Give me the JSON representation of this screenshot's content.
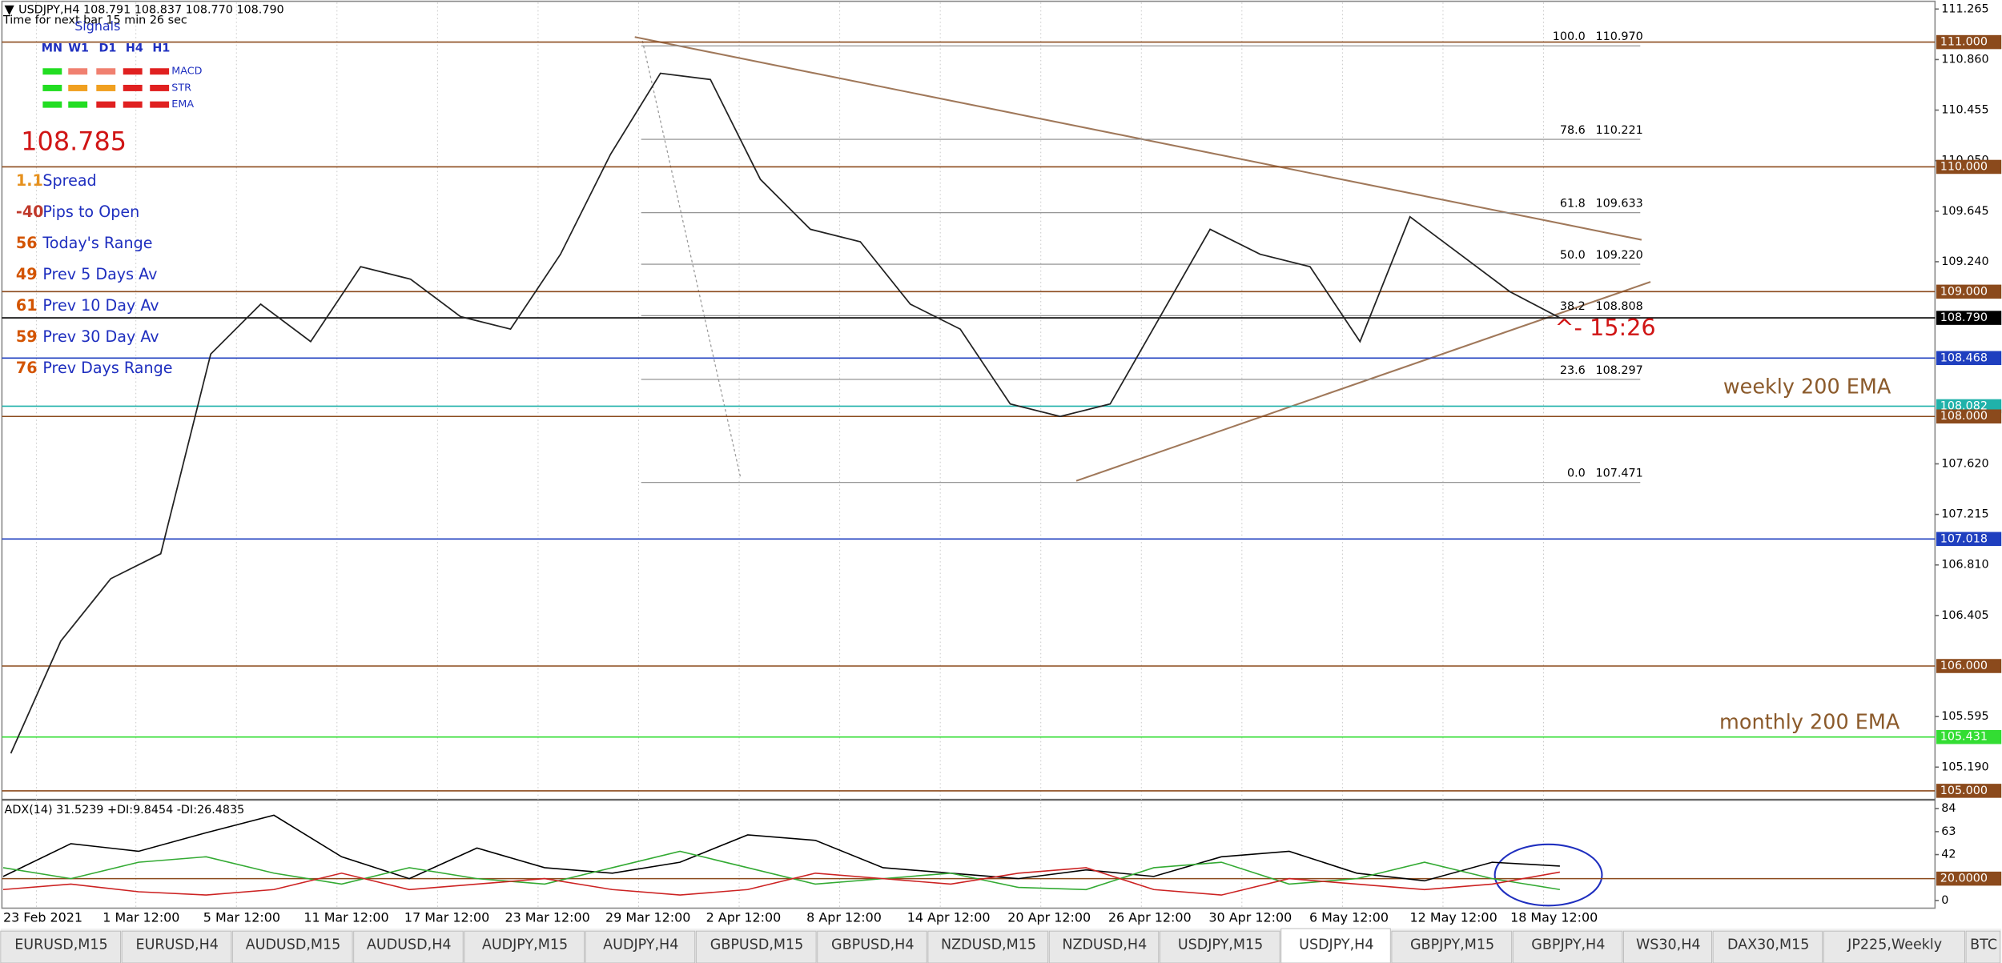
{
  "header": {
    "symbol_line": "USDJPY,H4  108.791 108.837 108.770 108.790",
    "timer": "Time for next bar 15 min 26 sec"
  },
  "signals": {
    "title": "Signals",
    "timeframes": [
      "MN",
      "W1",
      "D1",
      "H4",
      "H1"
    ],
    "indicators": [
      {
        "name": "MACD",
        "colors": [
          "#22dd22",
          "#f08070",
          "#f08070",
          "#e02020",
          "#e02020"
        ]
      },
      {
        "name": "STR",
        "colors": [
          "#22dd22",
          "#f0a020",
          "#f0a020",
          "#e02020",
          "#e02020"
        ]
      },
      {
        "name": "EMA",
        "colors": [
          "#22dd22",
          "#22dd22",
          "#e02020",
          "#e02020",
          "#e02020"
        ]
      }
    ]
  },
  "price": "108.785",
  "stats": [
    {
      "value": "1.1",
      "label": "Spread",
      "color": "#e6911e"
    },
    {
      "value": "-40",
      "label": "Pips to Open",
      "color": "#c0392b"
    },
    {
      "value": "56",
      "label": "Today's Range",
      "color": "#d35400"
    },
    {
      "value": "49",
      "label": "Prev 5 Days Av",
      "color": "#d35400"
    },
    {
      "value": "61",
      "label": "Prev 10 Day Av",
      "color": "#d35400"
    },
    {
      "value": "59",
      "label": "Prev 30 Day Av",
      "color": "#d35400"
    },
    {
      "value": "76",
      "label": "Prev Days Range",
      "color": "#d35400"
    }
  ],
  "annotations": {
    "cursor_note": "^- 15:26",
    "weekly_ema": "weekly 200 EMA",
    "monthly_ema": "monthly 200 EMA"
  },
  "chart_data": {
    "type": "line",
    "time_labels": [
      "23 Feb 2021",
      "1 Mar 12:00",
      "5 Mar 12:00",
      "11 Mar 12:00",
      "17 Mar 12:00",
      "23 Mar 12:00",
      "29 Mar 12:00",
      "2 Apr 12:00",
      "8 Apr 12:00",
      "14 Apr 12:00",
      "20 Apr 12:00",
      "26 Apr 12:00",
      "30 Apr 12:00",
      "6 May 12:00",
      "12 May 12:00",
      "18 May 12:00"
    ],
    "close_values": [
      105.3,
      106.2,
      106.7,
      106.9,
      108.5,
      108.9,
      108.6,
      109.2,
      109.1,
      108.8,
      108.7,
      109.3,
      110.1,
      110.75,
      110.7,
      109.9,
      109.5,
      109.4,
      108.9,
      108.7,
      108.1,
      108.0,
      108.1,
      108.8,
      109.5,
      109.3,
      109.2,
      108.6,
      109.6,
      109.3,
      109.0,
      108.79
    ],
    "color": "#222222",
    "ylim": [
      105,
      111
    ],
    "yticks": [
      111.265,
      {
        "value": 110.86,
        "label": "110.860"
      },
      110.455,
      {
        "value": 110.05,
        "label": "110.050"
      },
      109.645,
      {
        "value": 109.24,
        "label": "109.240"
      },
      {
        "value": 107.62,
        "label": "107.620"
      },
      107.215,
      {
        "value": 106.81,
        "label": "106.810"
      },
      106.405,
      105.595,
      {
        "value": 105.19,
        "label": "105.190"
      }
    ],
    "levels": [
      {
        "value": 111,
        "label": "111.000",
        "color": "#8b4a1c"
      },
      {
        "value": 110,
        "label": "110.000",
        "color": "#8b4a1c"
      },
      {
        "value": 109,
        "label": "109.000",
        "color": "#8b4a1c"
      },
      {
        "value": 108.79,
        "label": "108.790",
        "color": "#000000"
      },
      {
        "value": 108.468,
        "color": "#1f3fbf"
      },
      {
        "value": 108.082,
        "color": "#20b2aa"
      },
      {
        "value": 108,
        "label": "108.000",
        "color": "#8b4a1c"
      },
      {
        "value": 107.018,
        "color": "#1f3fbf"
      },
      {
        "value": 106,
        "label": "106.000",
        "color": "#8b4a1c"
      },
      {
        "value": 105.431,
        "color": "#33dd33"
      },
      {
        "value": 105,
        "label": "105.000",
        "color": "#8b4a1c"
      }
    ],
    "fib": [
      {
        "ratio": "100.0",
        "price": {
          "value": 110.97,
          "label": "110.970"
        }
      },
      {
        "ratio": "78.6",
        "price": 110.221
      },
      {
        "ratio": "61.8",
        "price": 109.633
      },
      {
        "ratio": "50.0",
        "price": {
          "value": 109.22,
          "label": "109.220"
        }
      },
      {
        "ratio": "38.2",
        "price": 108.808
      },
      {
        "ratio": "23.6",
        "price": 108.297
      },
      {
        "ratio": "0.0",
        "price": 107.471
      }
    ]
  },
  "indicator": {
    "title": "ADX(14) 31.5239 +DI:9.8454 -DI:26.4835",
    "ylim": [
      0,
      84
    ],
    "yticks": [
      84,
      63,
      42,
      0
    ],
    "level": {
      "value": 20,
      "label": "20.0000",
      "color": "#8b4a1c"
    },
    "series": [
      {
        "color": "#000000",
        "values": [
          22,
          52,
          45,
          62,
          78,
          40,
          20,
          48,
          30,
          25,
          35,
          60,
          55,
          30,
          25,
          20,
          28,
          22,
          40,
          45,
          25,
          18,
          35,
          31.5
        ]
      },
      {
        "color": "#33aa33",
        "values": [
          30,
          20,
          35,
          40,
          25,
          15,
          30,
          20,
          15,
          30,
          45,
          30,
          15,
          20,
          25,
          12,
          10,
          30,
          35,
          15,
          20,
          35,
          20,
          10
        ]
      },
      {
        "color": "#cc2222",
        "values": [
          10,
          15,
          8,
          5,
          10,
          25,
          10,
          15,
          20,
          10,
          5,
          10,
          25,
          20,
          15,
          25,
          30,
          10,
          5,
          20,
          15,
          10,
          15,
          26
        ]
      }
    ]
  },
  "tabs": {
    "items": [
      "EURUSD,M15",
      "EURUSD,H4",
      "AUDUSD,M15",
      "AUDUSD,H4",
      "AUDJPY,M15",
      "AUDJPY,H4",
      "GBPUSD,M15",
      "GBPUSD,H4",
      "NZDUSD,M15",
      "NZDUSD,H4",
      "USDJPY,M15",
      "USDJPY,H4",
      "GBPJPY,M15",
      "GBPJPY,H4",
      "WS30,H4",
      "DAX30,M15",
      "JP225,Weekly",
      "BTC"
    ],
    "active": 11
  }
}
